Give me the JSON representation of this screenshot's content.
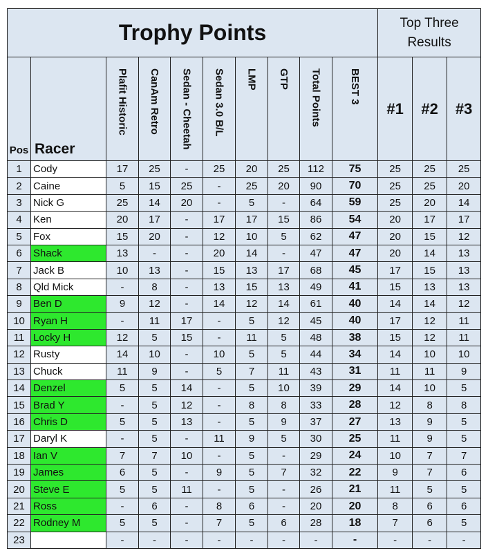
{
  "table": {
    "title": "Trophy Points",
    "top_three_label": "Top Three Results",
    "highlight_color": "#2ee82e",
    "columns": [
      "Pos",
      "Racer",
      "Plafit Historic",
      "CanAm Retro",
      "Sedan - Cheetah",
      "Sedan 3.0 B/L",
      "LMP",
      "GTP",
      "Total Points",
      "BEST 3",
      "#1",
      "#2",
      "#3"
    ],
    "rows": [
      {
        "cells": [
          1,
          "Cody",
          17,
          25,
          "-",
          25,
          20,
          25,
          112,
          75,
          25,
          25,
          25
        ],
        "highlight": false
      },
      {
        "cells": [
          2,
          "Caine",
          5,
          15,
          25,
          "-",
          25,
          20,
          90,
          70,
          25,
          25,
          20
        ],
        "highlight": false
      },
      {
        "cells": [
          3,
          "Nick G",
          25,
          14,
          20,
          "-",
          5,
          "-",
          64,
          59,
          25,
          20,
          14
        ],
        "highlight": false
      },
      {
        "cells": [
          4,
          "Ken",
          20,
          17,
          "-",
          17,
          17,
          15,
          86,
          54,
          20,
          17,
          17
        ],
        "highlight": false
      },
      {
        "cells": [
          5,
          "Fox",
          15,
          20,
          "-",
          12,
          10,
          5,
          62,
          47,
          20,
          15,
          12
        ],
        "highlight": false
      },
      {
        "cells": [
          6,
          "Shack",
          13,
          "-",
          "-",
          20,
          14,
          "-",
          47,
          47,
          20,
          14,
          13
        ],
        "highlight": true
      },
      {
        "cells": [
          7,
          "Jack B",
          10,
          13,
          "-",
          15,
          13,
          17,
          68,
          45,
          17,
          15,
          13
        ],
        "highlight": false
      },
      {
        "cells": [
          8,
          "Qld Mick",
          "-",
          8,
          "-",
          13,
          15,
          13,
          49,
          41,
          15,
          13,
          13
        ],
        "highlight": false
      },
      {
        "cells": [
          9,
          "Ben D",
          9,
          12,
          "-",
          14,
          12,
          14,
          61,
          40,
          14,
          14,
          12
        ],
        "highlight": true
      },
      {
        "cells": [
          10,
          "Ryan H",
          "-",
          11,
          17,
          "-",
          5,
          12,
          45,
          40,
          17,
          12,
          11
        ],
        "highlight": true
      },
      {
        "cells": [
          11,
          "Locky H",
          12,
          5,
          15,
          "-",
          11,
          5,
          48,
          38,
          15,
          12,
          11
        ],
        "highlight": true
      },
      {
        "cells": [
          12,
          "Rusty",
          14,
          10,
          "-",
          10,
          5,
          5,
          44,
          34,
          14,
          10,
          10
        ],
        "highlight": false
      },
      {
        "cells": [
          13,
          "Chuck",
          11,
          9,
          "-",
          5,
          7,
          11,
          43,
          31,
          11,
          11,
          9
        ],
        "highlight": false
      },
      {
        "cells": [
          14,
          "Denzel",
          5,
          5,
          14,
          "-",
          5,
          10,
          39,
          29,
          14,
          10,
          5
        ],
        "highlight": true
      },
      {
        "cells": [
          15,
          "Brad Y",
          "-",
          5,
          12,
          "-",
          8,
          8,
          33,
          28,
          12,
          8,
          8
        ],
        "highlight": true
      },
      {
        "cells": [
          16,
          "Chris D",
          5,
          5,
          13,
          "-",
          5,
          9,
          37,
          27,
          13,
          9,
          5
        ],
        "highlight": true
      },
      {
        "cells": [
          17,
          "Daryl K",
          "-",
          5,
          "-",
          11,
          9,
          5,
          30,
          25,
          11,
          9,
          5
        ],
        "highlight": false
      },
      {
        "cells": [
          18,
          "Ian V",
          7,
          7,
          10,
          "-",
          5,
          "-",
          29,
          24,
          10,
          7,
          7
        ],
        "highlight": true
      },
      {
        "cells": [
          19,
          "James",
          6,
          5,
          "-",
          9,
          5,
          7,
          32,
          22,
          9,
          7,
          6
        ],
        "highlight": true
      },
      {
        "cells": [
          20,
          "Steve E",
          5,
          5,
          11,
          "-",
          5,
          "-",
          26,
          21,
          11,
          5,
          5
        ],
        "highlight": true
      },
      {
        "cells": [
          21,
          "Ross",
          "-",
          6,
          "-",
          8,
          6,
          "-",
          20,
          20,
          8,
          6,
          6
        ],
        "highlight": true
      },
      {
        "cells": [
          22,
          "Rodney M",
          5,
          5,
          "-",
          7,
          5,
          6,
          28,
          18,
          7,
          6,
          5
        ],
        "highlight": true
      },
      {
        "cells": [
          23,
          null,
          "-",
          "-",
          "-",
          "-",
          "-",
          "-",
          "-",
          "-",
          "-",
          "-",
          "-"
        ],
        "highlight": false
      }
    ]
  }
}
